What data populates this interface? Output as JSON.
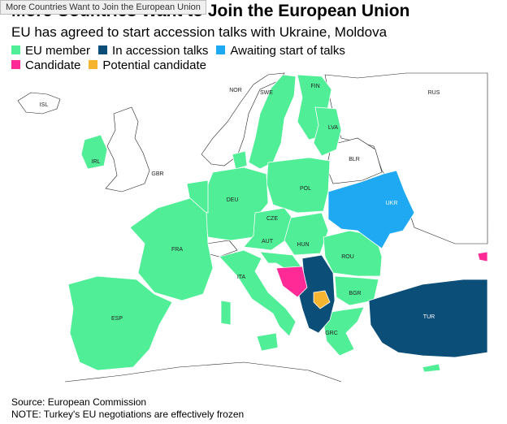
{
  "tooltip": "More Countries Want to Join the European Union",
  "title": "More Countries Want to Join the European Union",
  "subtitle": "EU has agreed to start accession talks with Ukraine, Moldova",
  "legend": [
    {
      "label": "EU member",
      "color": "#50ee96"
    },
    {
      "label": "In accession talks",
      "color": "#0b4e78"
    },
    {
      "label": "Awaiting start of talks",
      "color": "#1ea9f2"
    },
    {
      "label": "Candidate",
      "color": "#ff2a95"
    },
    {
      "label": "Potential candidate",
      "color": "#f6b531"
    }
  ],
  "labels": [
    "NOR",
    "SWE",
    "FIN",
    "ISL",
    "RUS",
    "LVA",
    "IRL",
    "GBR",
    "BLR",
    "DEU",
    "POL",
    "UKR",
    "CZE",
    "FRA",
    "AUT",
    "HUN",
    "ROU",
    "ITA",
    "BGR",
    "ESP",
    "TUR",
    "GRC"
  ],
  "source": "Source: European Commission",
  "note": "NOTE: Turkey's EU negotiations are effectively frozen"
}
